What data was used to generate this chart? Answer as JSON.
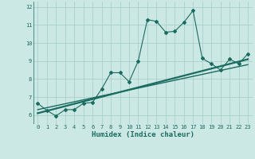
{
  "xlabel": "Humidex (Indice chaleur)",
  "xlim": [
    -0.5,
    23.5
  ],
  "ylim": [
    5.5,
    12.3
  ],
  "xticks": [
    0,
    1,
    2,
    3,
    4,
    5,
    6,
    7,
    8,
    9,
    10,
    11,
    12,
    13,
    14,
    15,
    16,
    17,
    18,
    19,
    20,
    21,
    22,
    23
  ],
  "yticks": [
    6,
    7,
    8,
    9,
    10,
    11,
    12
  ],
  "background_color": "#cce8e4",
  "grid_color": "#aacfcb",
  "line_color": "#1a6b60",
  "line1_x": [
    0,
    1,
    2,
    3,
    4,
    5,
    6,
    7,
    8,
    9,
    10,
    11,
    12,
    13,
    14,
    15,
    16,
    17,
    18,
    19,
    20,
    21,
    22,
    23
  ],
  "line1_y": [
    6.65,
    6.25,
    5.95,
    6.3,
    6.3,
    6.65,
    6.7,
    7.45,
    8.35,
    8.35,
    7.85,
    9.0,
    11.3,
    11.2,
    10.6,
    10.65,
    11.15,
    11.8,
    9.15,
    8.85,
    8.5,
    9.1,
    8.85,
    9.4
  ],
  "line2_x": [
    0,
    23
  ],
  "line2_y": [
    6.3,
    8.8
  ],
  "line3_x": [
    0,
    23
  ],
  "line3_y": [
    6.1,
    9.1
  ],
  "tick_fontsize": 5.0,
  "xlabel_fontsize": 6.5
}
